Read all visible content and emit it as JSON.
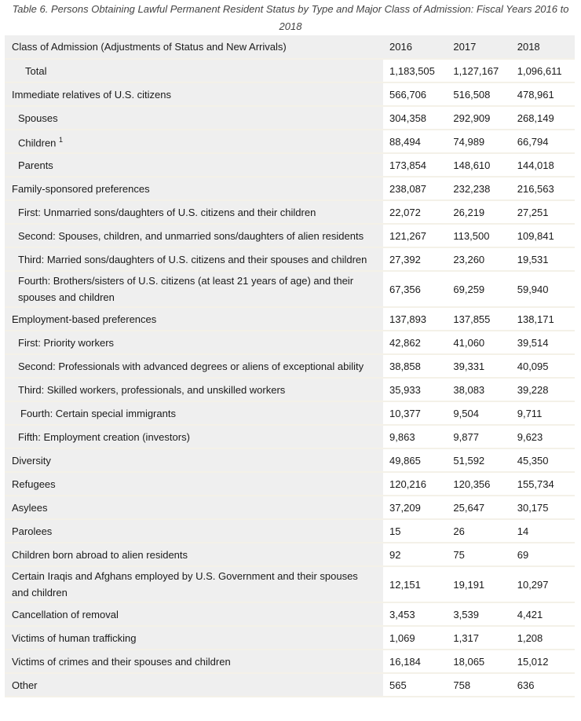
{
  "caption": "Table 6. Persons Obtaining Lawful Permanent Resident Status by Type and Major Class of Admission: Fiscal Years 2016 to 2018",
  "headers": [
    "Class of Admission (Adjustments of Status and New Arrivals)",
    "2016",
    "2017",
    "2018"
  ],
  "rows": [
    {
      "label": "Total",
      "indent": 2,
      "values": [
        "1,183,505",
        "1,127,167",
        "1,096,611"
      ]
    },
    {
      "label": "Immediate relatives of U.S. citizens",
      "indent": 0,
      "values": [
        "566,706",
        "516,508",
        "478,961"
      ]
    },
    {
      "label": "Spouses",
      "indent": 1,
      "values": [
        "304,358",
        "292,909",
        "268,149"
      ]
    },
    {
      "label": "Children",
      "sup": "1",
      "indent": 1,
      "values": [
        "88,494",
        "74,989",
        "66,794"
      ]
    },
    {
      "label": "Parents",
      "indent": 1,
      "values": [
        "173,854",
        "148,610",
        "144,018"
      ]
    },
    {
      "label": "Family-sponsored preferences",
      "indent": 0,
      "values": [
        "238,087",
        "232,238",
        "216,563"
      ]
    },
    {
      "label": "First: Unmarried sons/daughters of U.S. citizens and their children",
      "indent": 1,
      "values": [
        "22,072",
        "26,219",
        "27,251"
      ]
    },
    {
      "label": "Second: Spouses, children, and unmarried sons/daughters of alien residents",
      "indent": 1,
      "values": [
        "121,267",
        "113,500",
        "109,841"
      ]
    },
    {
      "label": "Third: Married sons/daughters of U.S. citizens and their spouses and children",
      "indent": 1,
      "values": [
        "27,392",
        "23,260",
        "19,531"
      ]
    },
    {
      "label": "Fourth: Brothers/sisters of U.S. citizens (at least 21 years of age) and their spouses and children",
      "indent": 1,
      "double": true,
      "values": [
        "67,356",
        "69,259",
        "59,940"
      ]
    },
    {
      "label": "Employment-based preferences",
      "indent": 0,
      "values": [
        "137,893",
        "137,855",
        "138,171"
      ]
    },
    {
      "label": "First: Priority workers",
      "indent": 1,
      "values": [
        "42,862",
        "41,060",
        "39,514"
      ]
    },
    {
      "label": "Second: Professionals with advanced degrees or aliens of exceptional ability",
      "indent": 1,
      "values": [
        "38,858",
        "39,331",
        "40,095"
      ]
    },
    {
      "label": "Third: Skilled workers, professionals, and unskilled workers",
      "indent": 1,
      "values": [
        "35,933",
        "38,083",
        "39,228"
      ]
    },
    {
      "label": "Fourth: Certain special immigrants",
      "indent": 3,
      "values": [
        "10,377",
        "9,504",
        "9,711"
      ]
    },
    {
      "label": "Fifth: Employment creation (investors)",
      "indent": 1,
      "values": [
        "9,863",
        "9,877",
        "9,623"
      ]
    },
    {
      "label": "Diversity",
      "indent": 0,
      "values": [
        "49,865",
        "51,592",
        "45,350"
      ]
    },
    {
      "label": "Refugees",
      "indent": 0,
      "values": [
        "120,216",
        "120,356",
        "155,734"
      ]
    },
    {
      "label": "Asylees",
      "indent": 0,
      "values": [
        "37,209",
        "25,647",
        "30,175"
      ]
    },
    {
      "label": "Parolees",
      "indent": 0,
      "values": [
        "15",
        "26",
        "14"
      ]
    },
    {
      "label": "Children born abroad to alien residents",
      "indent": 0,
      "values": [
        "92",
        "75",
        "69"
      ]
    },
    {
      "label": "Certain Iraqis and Afghans employed by U.S. Government and their spouses and children",
      "indent": 0,
      "double": true,
      "values": [
        "12,151",
        "19,191",
        "10,297"
      ]
    },
    {
      "label": "Cancellation of removal",
      "indent": 0,
      "values": [
        "3,453",
        "3,539",
        "4,421"
      ]
    },
    {
      "label": "Victims of human trafficking",
      "indent": 0,
      "values": [
        "1,069",
        "1,317",
        "1,208"
      ]
    },
    {
      "label": "Victims of crimes and their spouses and children",
      "indent": 0,
      "values": [
        "16,184",
        "18,065",
        "15,012"
      ]
    },
    {
      "label": "Other",
      "indent": 0,
      "values": [
        "565",
        "758",
        "636"
      ]
    }
  ]
}
